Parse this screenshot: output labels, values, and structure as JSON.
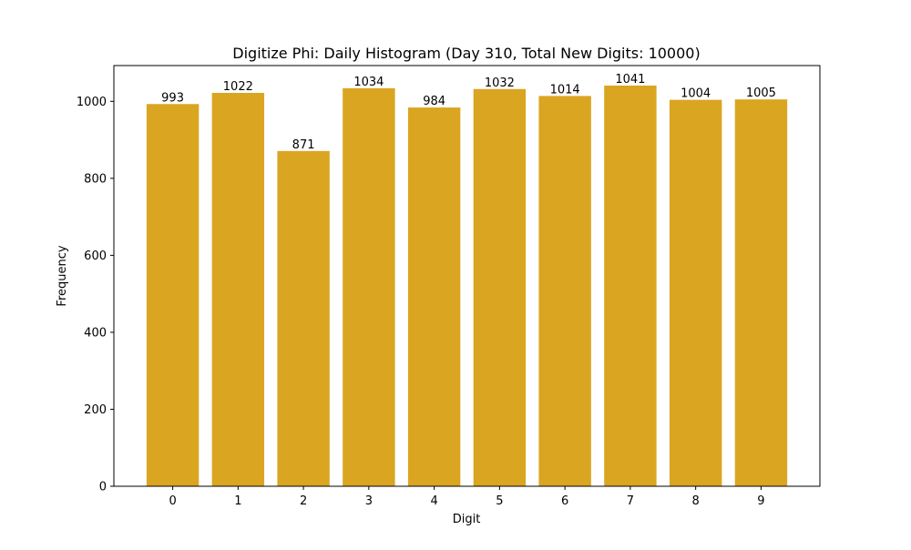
{
  "chart_data": {
    "type": "bar",
    "title": "Digitize Phi: Daily Histogram (Day 310, Total New Digits: 10000)",
    "xlabel": "Digit",
    "ylabel": "Frequency",
    "categories": [
      "0",
      "1",
      "2",
      "3",
      "4",
      "5",
      "6",
      "7",
      "8",
      "9"
    ],
    "values": [
      993,
      1022,
      871,
      1034,
      984,
      1032,
      1014,
      1041,
      1004,
      1005
    ],
    "data_labels": [
      "993",
      "1022",
      "871",
      "1034",
      "984",
      "1032",
      "1014",
      "1041",
      "1004",
      "1005"
    ],
    "yticks": [
      0,
      200,
      400,
      600,
      800,
      1000
    ],
    "ylim": [
      0,
      1093
    ],
    "grid": false,
    "bar_color": "#DAA520"
  }
}
